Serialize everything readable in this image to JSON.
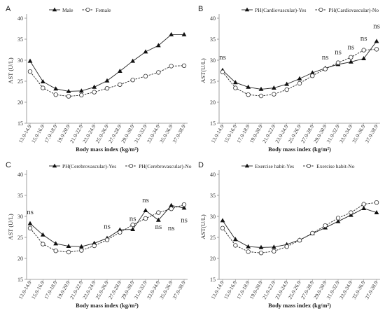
{
  "chart_data": [
    {
      "type": "line",
      "panel": "A",
      "ylabel": "AST  (U/L)",
      "xlabel": "Body mass index (kg/m²)",
      "ylim": [
        15,
        40
      ],
      "yticks": [
        15,
        20,
        25,
        30,
        35,
        40
      ],
      "legend_position": "top-left",
      "categories": [
        "13.0-14.9",
        "15.0-16.9",
        "17.0-18.9",
        "19.0-20.9",
        "21.0-22.9",
        "23.0-24.9",
        "25.0-26.9",
        "27.0-28.9",
        "29.0-30.9",
        "31.0-32.9",
        "33.0-34.9",
        "35.0-36.9",
        "37.0-38.9"
      ],
      "series": [
        {
          "name": "Male",
          "marker": "triangle",
          "values": [
            29.8,
            24.9,
            23.2,
            22.6,
            22.7,
            23.6,
            25.1,
            27.4,
            29.8,
            32.0,
            33.5,
            36.1,
            36.1
          ]
        },
        {
          "name": "Female",
          "marker": "circle",
          "values": [
            27.3,
            23.4,
            21.8,
            21.4,
            21.7,
            22.4,
            23.3,
            24.2,
            25.3,
            26.2,
            27.1,
            28.6,
            28.7
          ]
        }
      ],
      "annotations": []
    },
    {
      "type": "line",
      "panel": "B",
      "ylabel": "AST(U/L)",
      "xlabel": "Body mass index (kg/m²)",
      "ylim": [
        15,
        40
      ],
      "yticks": [
        15,
        20,
        25,
        30,
        35,
        40
      ],
      "legend_position": "top-left",
      "categories": [
        "13.0-14.9",
        "15.0-16.9",
        "17.0-18.9",
        "19.0-20.9",
        "21.0-22.9",
        "23.0-24.9",
        "25.0-26.9",
        "27.0-28.9",
        "29.0-30.9",
        "31.0-32.9",
        "33.0-34.9",
        "35.0-36.9",
        "37.0-38.9"
      ],
      "series": [
        {
          "name": "PH(Cardiovascular)-Yes",
          "marker": "triangle",
          "values": [
            27.6,
            24.7,
            23.6,
            23.1,
            23.4,
            24.3,
            25.6,
            27.0,
            28.1,
            29.0,
            29.6,
            30.4,
            34.5
          ]
        },
        {
          "name": "PH(Cardiovascular)-No",
          "marker": "circle",
          "values": [
            27.2,
            23.4,
            21.8,
            21.5,
            21.9,
            23.0,
            24.5,
            26.3,
            27.9,
            29.4,
            30.7,
            32.4,
            32.6
          ]
        }
      ],
      "annotations": [
        {
          "text": "ns",
          "category": 0,
          "y": 30.2
        },
        {
          "text": "ns",
          "category": 8,
          "y": 30.2
        },
        {
          "text": "ns",
          "category": 9,
          "y": 31.4
        },
        {
          "text": "ns",
          "category": 10,
          "y": 32.6
        },
        {
          "text": "ns",
          "category": 11,
          "y": 34.7
        },
        {
          "text": "ns",
          "category": 12,
          "y": 37.6
        }
      ]
    },
    {
      "type": "line",
      "panel": "C",
      "ylabel": "AST  (U/L)",
      "xlabel": "Body mass index (kg/m²)",
      "ylim": [
        15,
        40
      ],
      "yticks": [
        15,
        20,
        25,
        30,
        35,
        40
      ],
      "legend_position": "top-left",
      "categories": [
        "13.0-14.9",
        "15.0-16.9",
        "17.0-18.9",
        "19.0-20.9",
        "21.0-22.9",
        "23.0-24.9",
        "25.0-26.9",
        "27.0-28.9",
        "29.0-30.9",
        "31.0-32.9",
        "33.0-34.9",
        "35.0-36.9",
        "37.0-38.9"
      ],
      "series": [
        {
          "name": "PH(Cerebrovascular)-Yes",
          "marker": "triangle",
          "values": [
            28.3,
            25.6,
            23.5,
            22.9,
            22.8,
            23.6,
            24.8,
            26.8,
            26.9,
            31.4,
            29.1,
            32.6,
            32.0
          ]
        },
        {
          "name": "PH(Cerebrovascular)-No",
          "marker": "circle",
          "values": [
            27.2,
            23.4,
            21.8,
            21.5,
            21.9,
            23.0,
            24.4,
            26.2,
            28.0,
            29.5,
            30.9,
            31.8,
            32.8
          ]
        }
      ],
      "annotations": [
        {
          "text": "ns",
          "category": 0,
          "y": 30.5
        },
        {
          "text": "ns",
          "category": 6,
          "y": 27.1
        },
        {
          "text": "ns",
          "category": 8,
          "y": 28.9
        },
        {
          "text": "ns",
          "category": 9,
          "y": 33.3
        },
        {
          "text": "ns",
          "category": 10,
          "y": 27.0
        },
        {
          "text": "ns",
          "category": 11,
          "y": 26.7
        },
        {
          "text": "ns",
          "category": 12,
          "y": 28.6
        }
      ]
    },
    {
      "type": "line",
      "panel": "D",
      "ylabel": "AST(U/L)",
      "xlabel": "Body mass index (kg/m²)",
      "ylim": [
        15,
        40
      ],
      "yticks": [
        15,
        20,
        25,
        30,
        35,
        40
      ],
      "legend_position": "top-left",
      "categories": [
        "13.0-14.9",
        "15.0-16.9",
        "17.0-18.9",
        "19.0-20.9",
        "21.0-22.9",
        "23.0-24.9",
        "25.0-26.9",
        "27.0-28.9",
        "29.0-30.9",
        "31.0-32.9",
        "33.0-34.9",
        "35.0-36.9",
        "37.0-38.9"
      ],
      "series": [
        {
          "name": "Exercise habit-Yes",
          "marker": "triangle",
          "values": [
            29.0,
            24.5,
            22.8,
            22.6,
            22.7,
            23.3,
            24.4,
            25.9,
            27.3,
            28.8,
            30.3,
            31.9,
            30.9
          ]
        },
        {
          "name": "Exercise habit-No",
          "marker": "circle",
          "values": [
            27.2,
            23.1,
            21.6,
            21.3,
            21.7,
            22.8,
            24.3,
            26.0,
            27.8,
            29.6,
            30.9,
            32.9,
            33.3
          ]
        }
      ],
      "annotations": []
    }
  ]
}
